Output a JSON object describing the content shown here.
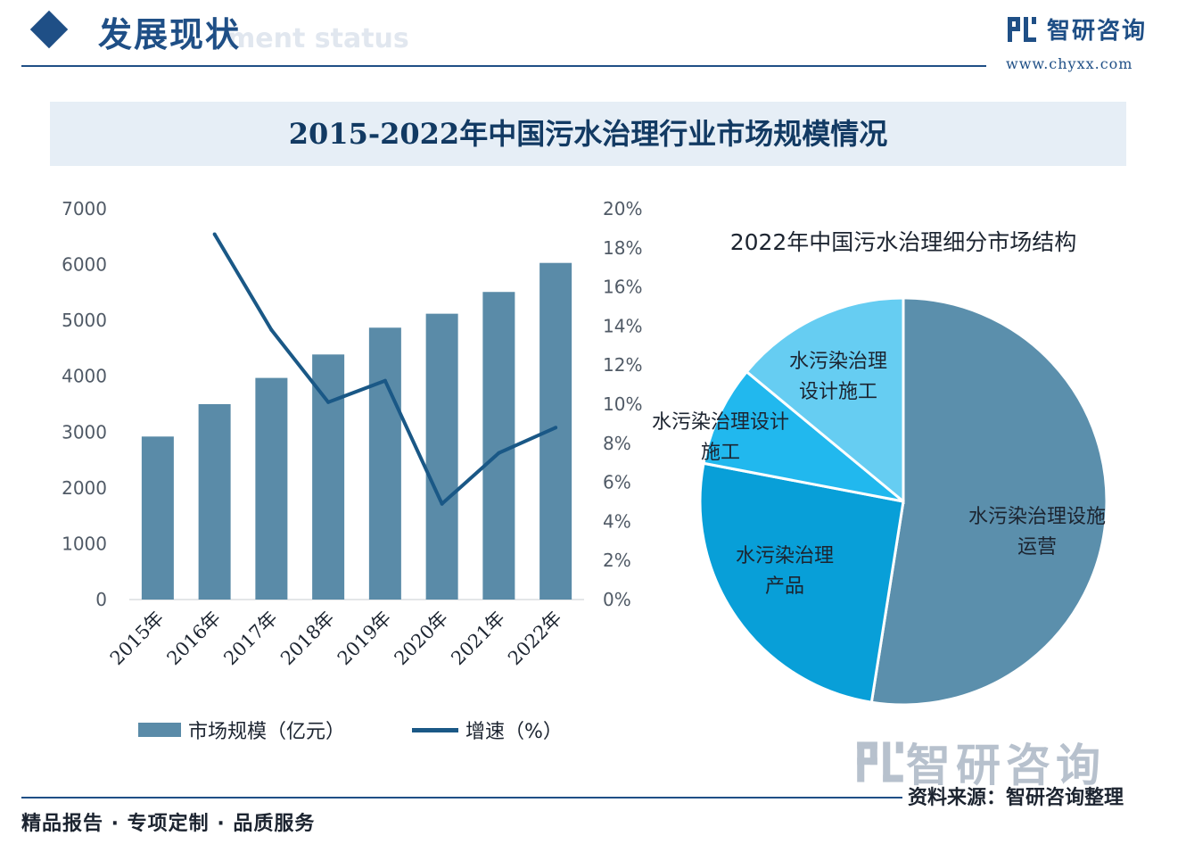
{
  "header": {
    "section_title": "发展现状",
    "section_subtitle": "ment status",
    "brand_name": "智研咨询",
    "brand_url": "www.chyxx.com"
  },
  "banner_title": "2015-2022年中国污水治理行业市场规模情况",
  "legend": {
    "bar_label": "市场规模（亿元）",
    "line_label": "增速（%）"
  },
  "watermark_brand": "智研咨询",
  "source": "资料来源：智研咨询整理",
  "footer": "精品报告 · 专项定制 · 品质服务",
  "colors": {
    "bar": "#5a8ba8",
    "line": "#1a5886",
    "pie_operation": "#5b8fac",
    "pie_products": "#089fd8",
    "pie_design_a": "#21b8ee",
    "pie_design_b": "#66cdf2"
  },
  "chart_data": [
    {
      "type": "bar",
      "categories": [
        "2015年",
        "2016年",
        "2017年",
        "2018年",
        "2019年",
        "2020年",
        "2021年",
        "2022年"
      ],
      "series": [
        {
          "name": "市场规模（亿元）",
          "type": "bar",
          "axis": "left",
          "values": [
            2920,
            3500,
            3970,
            4390,
            4870,
            5120,
            5510,
            6030
          ]
        },
        {
          "name": "增速（%）",
          "type": "line",
          "axis": "right",
          "values": [
            null,
            18.7,
            13.8,
            10.1,
            11.2,
            4.9,
            7.5,
            8.8
          ]
        }
      ],
      "ylim_left": [
        0,
        7000
      ],
      "yticks_left": [
        "0",
        "1000",
        "2000",
        "3000",
        "4000",
        "5000",
        "6000",
        "7000"
      ],
      "ylim_right": [
        0,
        20
      ],
      "yticks_right": [
        "0%",
        "2%",
        "4%",
        "6%",
        "8%",
        "10%",
        "12%",
        "14%",
        "16%",
        "18%",
        "20%"
      ],
      "grid": false,
      "legend": "bottom"
    },
    {
      "type": "pie",
      "title": "2022年中国污水治理细分市场结构",
      "slices": [
        {
          "label": "水污染治理设施运营",
          "value": 52.5
        },
        {
          "label": "水污染治理产品",
          "value": 25.5
        },
        {
          "label": "水污染治理设计施工",
          "value": 8.0
        },
        {
          "label": "水污染治理设计施工",
          "value": 14.0
        }
      ]
    }
  ]
}
